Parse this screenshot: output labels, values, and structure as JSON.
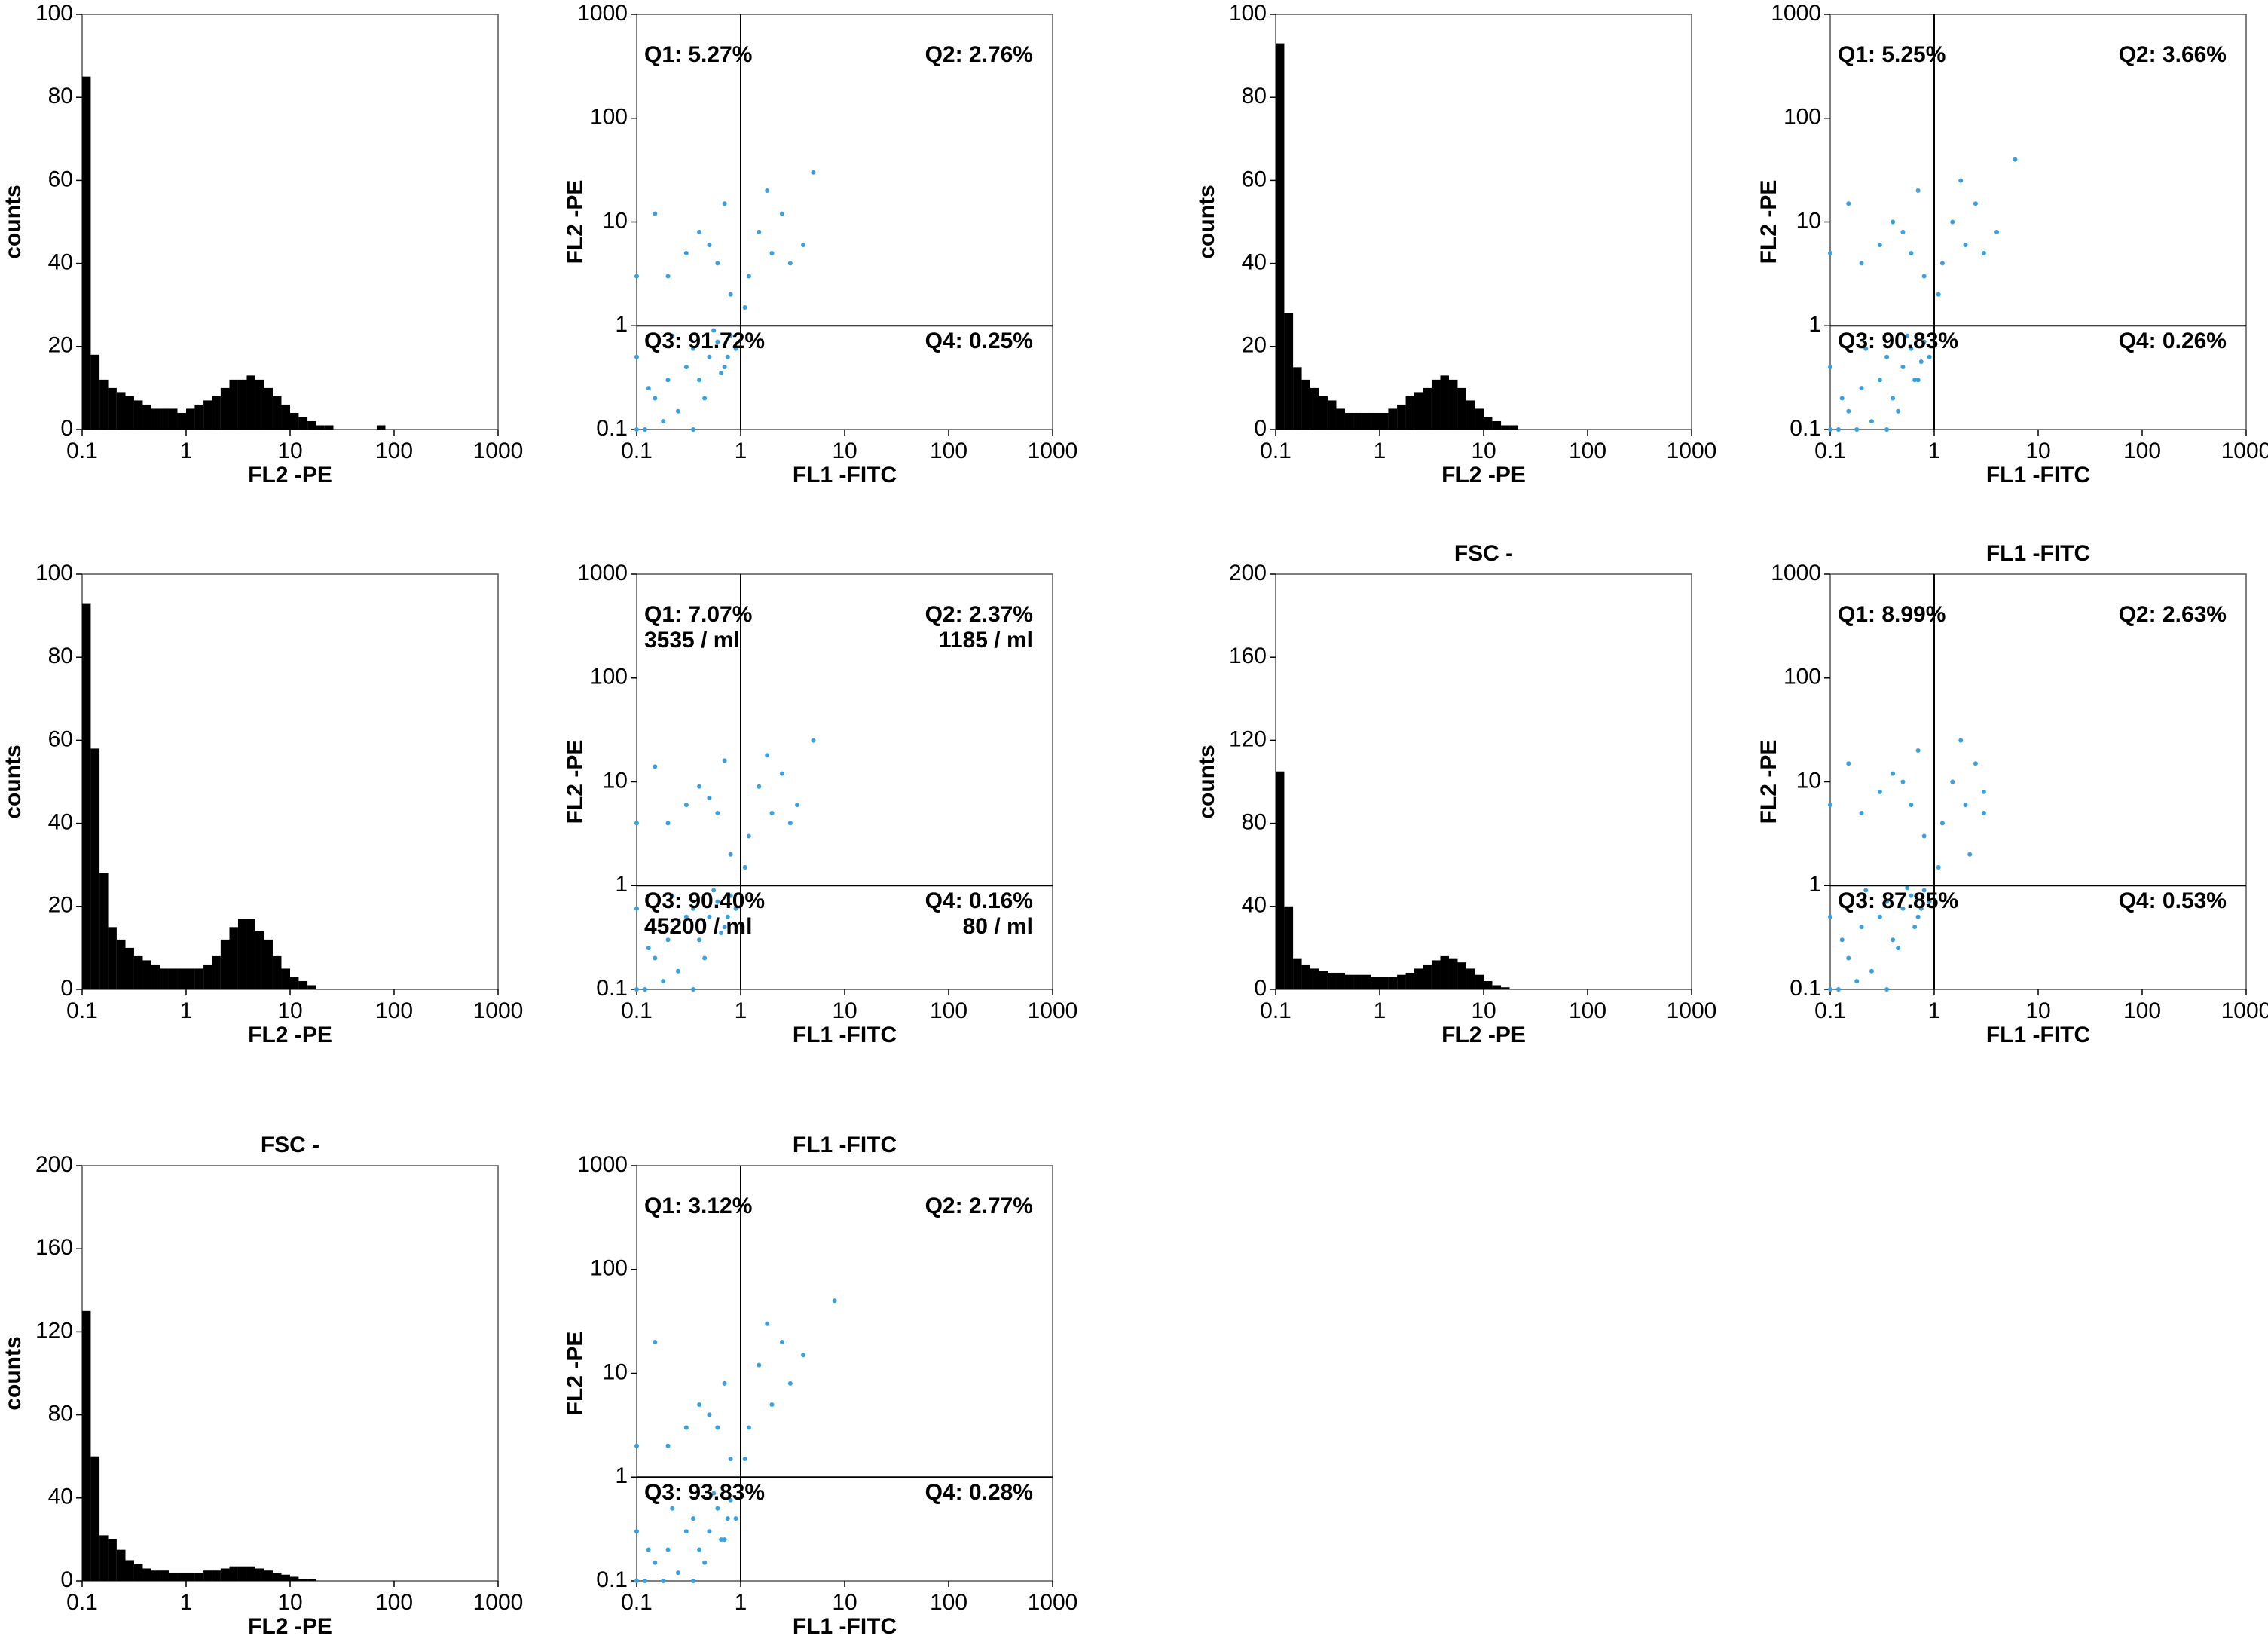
{
  "chart_data": [
    {
      "type": "histogram",
      "xlabel": "FL2 -PE",
      "ylabel": "counts",
      "xscale": "log",
      "color": "#000000",
      "bins": [
        0.1,
        0.121,
        0.147,
        0.178,
        0.215,
        0.261,
        0.316,
        0.383,
        0.464,
        0.562,
        0.681,
        0.825,
        1,
        1.21,
        1.47,
        1.78,
        2.15,
        2.61,
        3.16,
        3.83,
        4.64,
        5.62,
        6.81,
        8.25,
        10,
        12.1,
        14.7,
        17.8,
        21.5,
        26.1,
        31.6,
        38.3,
        46.4,
        56.2,
        68.1,
        82.5,
        100
      ],
      "values": [
        85,
        18,
        12,
        10,
        9,
        8,
        7,
        6,
        5,
        5,
        5,
        4,
        5,
        6,
        7,
        8,
        10,
        12,
        12,
        13,
        12,
        10,
        8,
        6,
        4,
        3,
        2,
        1,
        1,
        0,
        0,
        0,
        0,
        0,
        1,
        0
      ],
      "xlim": [
        0.1,
        1000
      ],
      "xticks": [
        0.1,
        1,
        10,
        100,
        1000
      ],
      "ylim": [
        0,
        100
      ],
      "yticks": [
        0,
        20,
        40,
        60,
        80,
        100
      ]
    },
    {
      "type": "scatter",
      "xlabel": "FL1 -FITC",
      "ylabel": "FL2 -PE",
      "xscale": "log",
      "yscale": "log",
      "color": "#3aa0e0",
      "quadrant_x": 1,
      "quadrant_y": 1,
      "quadrant_labels": [
        "Q1: 5.27%",
        "Q2: 2.76%",
        "Q3: 91.72%",
        "Q4: 0.25%"
      ],
      "x": [
        0.1,
        0.1,
        0.1,
        0.12,
        0.15,
        0.2,
        0.25,
        0.3,
        0.35,
        0.4,
        0.5,
        0.6,
        0.7,
        0.8,
        0.9,
        0.13,
        0.18,
        0.22,
        0.45,
        0.55,
        0.65,
        0.75,
        0.2,
        0.3,
        0.4,
        0.6,
        0.8,
        0.15,
        0.5,
        0.7,
        1.2,
        1.5,
        2,
        2.5,
        3,
        1.8,
        4,
        5,
        1.1,
        0.35
      ],
      "values": [
        0.1,
        0.5,
        3,
        0.1,
        0.2,
        0.3,
        0.15,
        0.4,
        0.6,
        0.3,
        0.5,
        0.7,
        0.4,
        0.8,
        0.6,
        0.25,
        0.12,
        0.8,
        0.2,
        0.9,
        0.35,
        0.5,
        3,
        5,
        8,
        4,
        2,
        12,
        6,
        15,
        3,
        8,
        5,
        12,
        4,
        20,
        6,
        30,
        1.5,
        0.1
      ],
      "xlim": [
        0.1,
        1000
      ],
      "xticks": [
        0.1,
        1,
        10,
        100,
        1000
      ],
      "ylim": [
        0.1,
        1000
      ],
      "yticks": [
        0.1,
        1,
        10,
        100,
        1000
      ]
    },
    {
      "type": "histogram",
      "xlabel": "FL2 -PE",
      "ylabel": "counts",
      "xscale": "log",
      "color": "#000000",
      "bins": [
        0.1,
        0.121,
        0.147,
        0.178,
        0.215,
        0.261,
        0.316,
        0.383,
        0.464,
        0.562,
        0.681,
        0.825,
        1,
        1.21,
        1.47,
        1.78,
        2.15,
        2.61,
        3.16,
        3.83,
        4.64,
        5.62,
        6.81,
        8.25,
        10,
        12.1,
        14.7,
        17.8,
        21.5,
        26.1,
        31.6,
        38.3,
        46.4,
        56.2,
        68.1,
        82.5,
        100
      ],
      "values": [
        93,
        28,
        15,
        12,
        10,
        8,
        7,
        5,
        4,
        4,
        4,
        4,
        4,
        5,
        6,
        8,
        9,
        10,
        12,
        13,
        12,
        10,
        7,
        5,
        3,
        2,
        1,
        1,
        0,
        0,
        0,
        0,
        0,
        0,
        0,
        0
      ],
      "xlim": [
        0.1,
        1000
      ],
      "xticks": [
        0.1,
        1,
        10,
        100,
        1000
      ],
      "ylim": [
        0,
        100
      ],
      "yticks": [
        0,
        20,
        40,
        60,
        80,
        100
      ]
    },
    {
      "type": "scatter",
      "xlabel": "FL1 -FITC",
      "ylabel": "FL2 -PE",
      "xscale": "log",
      "yscale": "log",
      "color": "#3aa0e0",
      "quadrant_x": 1,
      "quadrant_y": 1,
      "quadrant_labels": [
        "Q1: 5.25%",
        "Q2: 3.66%",
        "Q3: 90.83%",
        "Q4: 0.26%"
      ],
      "x": [
        0.1,
        0.1,
        0.1,
        0.12,
        0.15,
        0.2,
        0.25,
        0.3,
        0.35,
        0.4,
        0.5,
        0.6,
        0.7,
        0.8,
        0.9,
        0.13,
        0.18,
        0.22,
        0.45,
        0.55,
        0.65,
        0.75,
        0.2,
        0.3,
        0.4,
        0.6,
        0.8,
        0.15,
        0.5,
        0.7,
        1.2,
        1.5,
        2,
        2.5,
        3,
        1.8,
        4,
        6,
        1.1,
        0.35
      ],
      "values": [
        0.1,
        0.4,
        5,
        0.1,
        0.15,
        0.25,
        0.12,
        0.3,
        0.5,
        0.2,
        0.4,
        0.6,
        0.3,
        0.7,
        0.5,
        0.2,
        0.1,
        0.6,
        0.15,
        0.8,
        0.3,
        0.45,
        4,
        6,
        10,
        5,
        3,
        15,
        8,
        20,
        4,
        10,
        6,
        15,
        5,
        25,
        8,
        40,
        2,
        0.1
      ],
      "xlim": [
        0.1,
        1000
      ],
      "xticks": [
        0.1,
        1,
        10,
        100,
        1000
      ],
      "ylim": [
        0.1,
        1000
      ],
      "yticks": [
        0.1,
        1,
        10,
        100,
        1000
      ]
    },
    {
      "type": "histogram",
      "xlabel": "FL2 -PE",
      "ylabel": "counts",
      "xscale": "log",
      "color": "#000000",
      "bins": [
        0.1,
        0.121,
        0.147,
        0.178,
        0.215,
        0.261,
        0.316,
        0.383,
        0.464,
        0.562,
        0.681,
        0.825,
        1,
        1.21,
        1.47,
        1.78,
        2.15,
        2.61,
        3.16,
        3.83,
        4.64,
        5.62,
        6.81,
        8.25,
        10,
        12.1,
        14.7,
        17.8,
        21.5,
        26.1,
        31.6,
        38.3,
        46.4,
        56.2,
        68.1,
        82.5,
        100
      ],
      "values": [
        93,
        58,
        28,
        15,
        12,
        10,
        8,
        7,
        6,
        5,
        5,
        5,
        5,
        5,
        6,
        8,
        12,
        15,
        17,
        17,
        14,
        12,
        8,
        5,
        3,
        2,
        1,
        0,
        0,
        0,
        0,
        0,
        0,
        0,
        0,
        0
      ],
      "xlim": [
        0.1,
        1000
      ],
      "xticks": [
        0.1,
        1,
        10,
        100,
        1000
      ],
      "ylim": [
        0,
        100
      ],
      "yticks": [
        0,
        20,
        40,
        60,
        80,
        100
      ]
    },
    {
      "type": "scatter",
      "xlabel": "FL1 -FITC",
      "ylabel": "FL2 -PE",
      "xscale": "log",
      "yscale": "log",
      "color": "#3aa0e0",
      "quadrant_x": 1,
      "quadrant_y": 1,
      "quadrant_labels": [
        "Q1: 7.07%",
        "Q2: 2.37%",
        "Q3: 90.40%",
        "Q4: 0.16%"
      ],
      "quadrant_counts": [
        "3535 / ml",
        "1185 / ml",
        "45200 / ml",
        "80 / ml"
      ],
      "x": [
        0.1,
        0.1,
        0.1,
        0.12,
        0.15,
        0.2,
        0.25,
        0.3,
        0.35,
        0.4,
        0.5,
        0.6,
        0.7,
        0.8,
        0.9,
        0.13,
        0.18,
        0.22,
        0.45,
        0.55,
        0.65,
        0.75,
        0.2,
        0.3,
        0.4,
        0.6,
        0.8,
        0.15,
        0.5,
        0.7,
        1.2,
        1.5,
        2,
        2.5,
        3,
        1.8,
        3.5,
        5,
        1.1,
        0.35
      ],
      "values": [
        0.1,
        0.6,
        4,
        0.1,
        0.2,
        0.3,
        0.15,
        0.5,
        0.6,
        0.3,
        0.5,
        0.7,
        0.4,
        0.8,
        0.6,
        0.25,
        0.12,
        0.8,
        0.2,
        0.9,
        0.35,
        0.5,
        4,
        6,
        9,
        5,
        2,
        14,
        7,
        16,
        3,
        9,
        5,
        12,
        4,
        18,
        6,
        25,
        1.5,
        0.1
      ],
      "xlim": [
        0.1,
        1000
      ],
      "xticks": [
        0.1,
        1,
        10,
        100,
        1000
      ],
      "ylim": [
        0.1,
        1000
      ],
      "yticks": [
        0.1,
        1,
        10,
        100,
        1000
      ]
    },
    {
      "type": "histogram",
      "title": "FSC -",
      "xlabel": "FL2 -PE",
      "ylabel": "counts",
      "xscale": "log",
      "color": "#000000",
      "bins": [
        0.1,
        0.121,
        0.147,
        0.178,
        0.215,
        0.261,
        0.316,
        0.383,
        0.464,
        0.562,
        0.681,
        0.825,
        1,
        1.21,
        1.47,
        1.78,
        2.15,
        2.61,
        3.16,
        3.83,
        4.64,
        5.62,
        6.81,
        8.25,
        10,
        12.1,
        14.7,
        17.8,
        21.5,
        26.1,
        31.6,
        38.3,
        46.4,
        56.2,
        68.1,
        82.5,
        100
      ],
      "values": [
        105,
        40,
        15,
        12,
        10,
        9,
        8,
        8,
        7,
        7,
        7,
        6,
        6,
        6,
        7,
        8,
        10,
        12,
        14,
        16,
        15,
        13,
        10,
        7,
        4,
        2,
        1,
        0,
        0,
        0,
        0,
        0,
        0,
        0,
        0,
        0
      ],
      "xlim": [
        0.1,
        1000
      ],
      "xticks": [
        0.1,
        1,
        10,
        100,
        1000
      ],
      "ylim": [
        0,
        200
      ],
      "yticks": [
        0,
        40,
        80,
        120,
        160,
        200
      ]
    },
    {
      "type": "scatter",
      "title": "FL1 -FITC",
      "xlabel": "FL1 -FITC",
      "ylabel": "FL2 -PE",
      "xscale": "log",
      "yscale": "log",
      "color": "#3aa0e0",
      "quadrant_x": 1,
      "quadrant_y": 1,
      "quadrant_labels": [
        "Q1: 8.99%",
        "Q2: 2.63%",
        "Q3: 87.85%",
        "Q4: 0.53%"
      ],
      "x": [
        0.1,
        0.1,
        0.1,
        0.12,
        0.15,
        0.2,
        0.25,
        0.3,
        0.35,
        0.4,
        0.5,
        0.6,
        0.7,
        0.8,
        0.9,
        0.13,
        0.18,
        0.22,
        0.45,
        0.55,
        0.65,
        0.75,
        0.2,
        0.3,
        0.4,
        0.6,
        0.8,
        0.15,
        0.5,
        0.7,
        1.2,
        1.5,
        2,
        2.5,
        3,
        1.8,
        3,
        2.2,
        1.1,
        0.35
      ],
      "values": [
        0.1,
        0.5,
        6,
        0.1,
        0.2,
        0.4,
        0.15,
        0.5,
        0.7,
        0.3,
        0.6,
        0.8,
        0.5,
        0.9,
        0.7,
        0.3,
        0.12,
        0.9,
        0.25,
        0.95,
        0.4,
        0.6,
        5,
        8,
        12,
        6,
        3,
        15,
        10,
        20,
        4,
        10,
        6,
        15,
        5,
        25,
        8,
        2,
        1.5,
        0.1
      ],
      "xlim": [
        0.1,
        1000
      ],
      "xticks": [
        0.1,
        1,
        10,
        100,
        1000
      ],
      "ylim": [
        0.1,
        1000
      ],
      "yticks": [
        0.1,
        1,
        10,
        100,
        1000
      ]
    },
    {
      "type": "histogram",
      "title": "FSC -",
      "xlabel": "FL2 -PE",
      "ylabel": "counts",
      "xscale": "log",
      "color": "#000000",
      "bins": [
        0.1,
        0.121,
        0.147,
        0.178,
        0.215,
        0.261,
        0.316,
        0.383,
        0.464,
        0.562,
        0.681,
        0.825,
        1,
        1.21,
        1.47,
        1.78,
        2.15,
        2.61,
        3.16,
        3.83,
        4.64,
        5.62,
        6.81,
        8.25,
        10,
        12.1,
        14.7,
        17.8,
        21.5,
        26.1,
        31.6,
        38.3,
        46.4,
        56.2,
        68.1,
        82.5,
        100
      ],
      "values": [
        130,
        60,
        22,
        20,
        15,
        10,
        8,
        6,
        5,
        5,
        4,
        4,
        4,
        4,
        5,
        5,
        6,
        7,
        7,
        7,
        6,
        5,
        4,
        3,
        2,
        1,
        1,
        0,
        0,
        0,
        0,
        0,
        0,
        0,
        0,
        0
      ],
      "xlim": [
        0.1,
        1000
      ],
      "xticks": [
        0.1,
        1,
        10,
        100,
        1000
      ],
      "ylim": [
        0,
        200
      ],
      "yticks": [
        0,
        40,
        80,
        120,
        160,
        200
      ]
    },
    {
      "type": "scatter",
      "title": "FL1 -FITC",
      "xlabel": "FL1 -FITC",
      "ylabel": "FL2 -PE",
      "xscale": "log",
      "yscale": "log",
      "color": "#3aa0e0",
      "quadrant_x": 1,
      "quadrant_y": 1,
      "quadrant_labels": [
        "Q1: 3.12%",
        "Q2: 2.77%",
        "Q3: 93.83%",
        "Q4: 0.28%"
      ],
      "x": [
        0.1,
        0.1,
        0.1,
        0.12,
        0.15,
        0.2,
        0.25,
        0.3,
        0.35,
        0.4,
        0.5,
        0.6,
        0.7,
        0.8,
        0.9,
        0.13,
        0.18,
        0.22,
        0.45,
        0.55,
        0.65,
        0.75,
        0.2,
        0.3,
        0.4,
        0.6,
        0.8,
        0.15,
        0.5,
        0.7,
        1.2,
        1.5,
        2,
        2.5,
        3,
        1.8,
        4,
        8,
        1.1,
        0.35
      ],
      "values": [
        0.1,
        0.3,
        2,
        0.1,
        0.15,
        0.2,
        0.12,
        0.3,
        0.4,
        0.2,
        0.3,
        0.5,
        0.25,
        0.6,
        0.4,
        0.2,
        0.1,
        0.5,
        0.15,
        0.7,
        0.25,
        0.4,
        2,
        3,
        5,
        3,
        1.5,
        20,
        4,
        8,
        3,
        12,
        5,
        20,
        8,
        30,
        15,
        50,
        1.5,
        0.1
      ],
      "xlim": [
        0.1,
        1000
      ],
      "xticks": [
        0.1,
        1,
        10,
        100,
        1000
      ],
      "ylim": [
        0.1,
        1000
      ],
      "yticks": [
        0.1,
        1,
        10,
        100,
        1000
      ]
    }
  ]
}
